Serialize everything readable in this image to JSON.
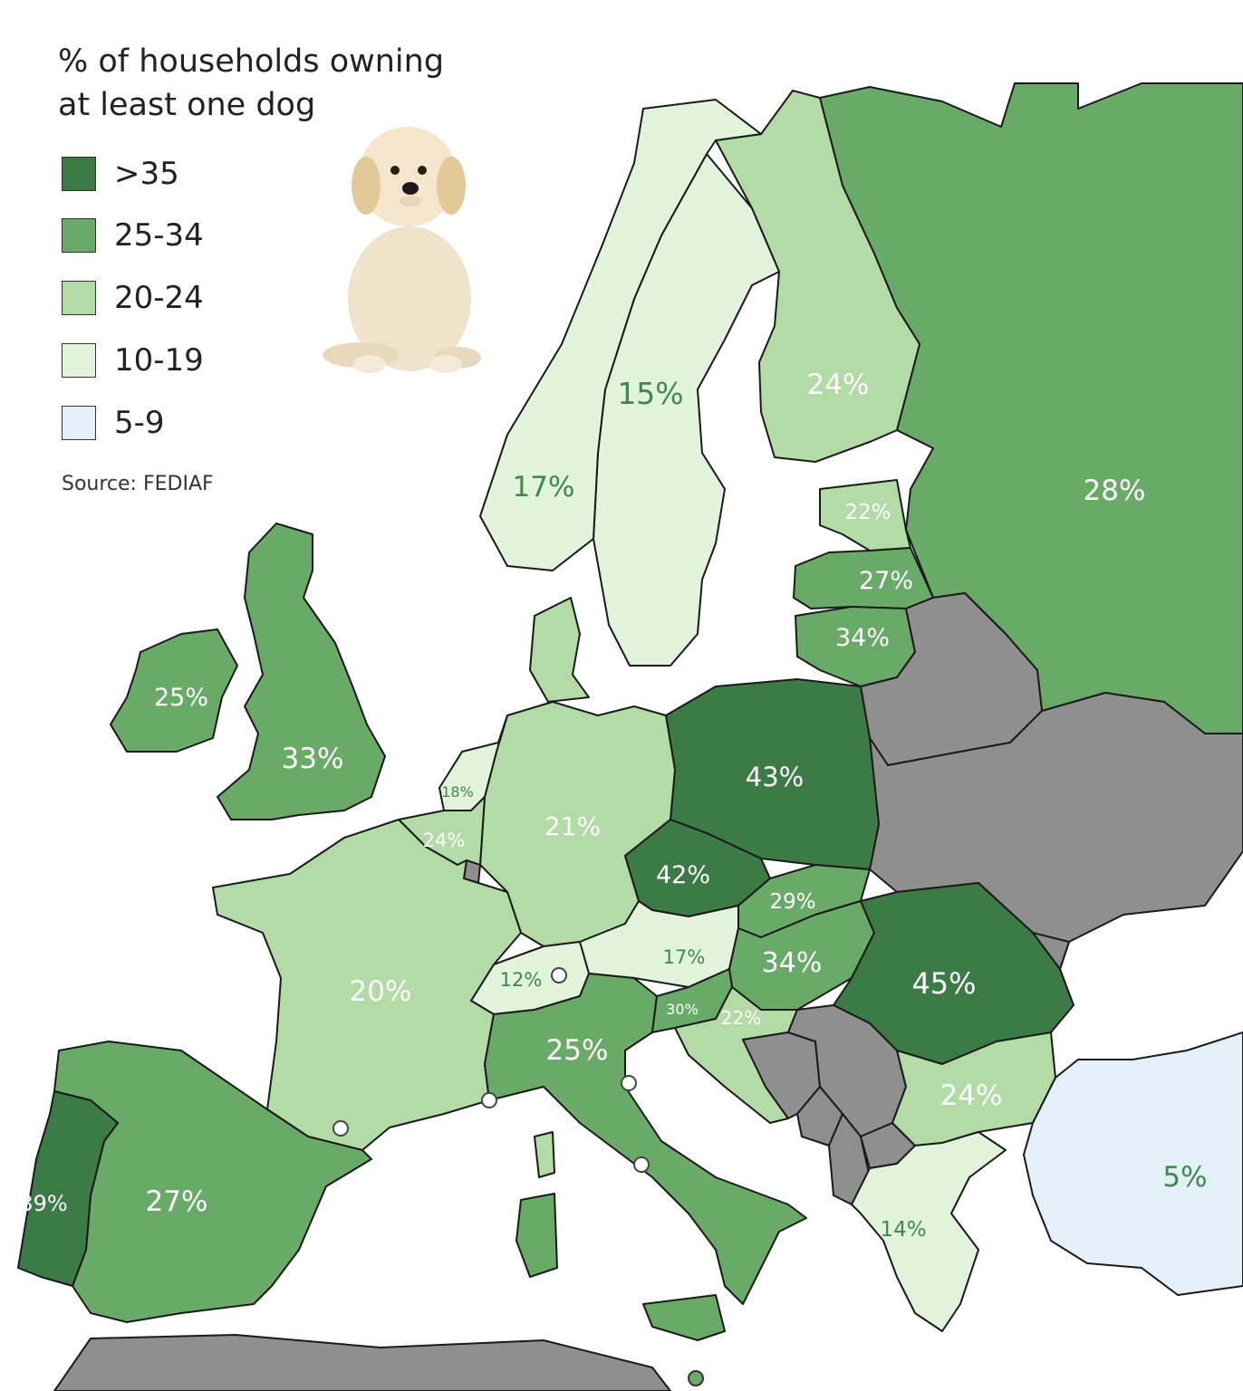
{
  "title": "% of households owning at least one dog",
  "source": "Source: FEDIAF",
  "legend": [
    {
      "label": ">35",
      "color": "#3d7b46"
    },
    {
      "label": "25-34",
      "color": "#6aaa69"
    },
    {
      "label": "20-24",
      "color": "#b2dba6"
    },
    {
      "label": "10-19",
      "color": "#e2f3dc"
    },
    {
      "label": "5-9",
      "color": "#e4f0f8"
    }
  ],
  "no_data_color": "#8f8f8f",
  "countries": [
    {
      "name": "Russia",
      "value": "28%",
      "pct": 28
    },
    {
      "name": "Finland",
      "value": "24%",
      "pct": 24
    },
    {
      "name": "Sweden",
      "value": "15%",
      "pct": 15
    },
    {
      "name": "Norway",
      "value": "17%",
      "pct": 17
    },
    {
      "name": "Estonia",
      "value": "22%",
      "pct": 22
    },
    {
      "name": "Latvia",
      "value": "27%",
      "pct": 27
    },
    {
      "name": "Lithuania",
      "value": "34%",
      "pct": 34
    },
    {
      "name": "Ireland",
      "value": "25%",
      "pct": 25
    },
    {
      "name": "United Kingdom",
      "value": "33%",
      "pct": 33
    },
    {
      "name": "Netherlands",
      "value": "18%",
      "pct": 18
    },
    {
      "name": "Belgium",
      "value": "24%",
      "pct": 24
    },
    {
      "name": "Germany",
      "value": "21%",
      "pct": 21
    },
    {
      "name": "Poland",
      "value": "43%",
      "pct": 43
    },
    {
      "name": "Czechia",
      "value": "42%",
      "pct": 42
    },
    {
      "name": "Slovakia",
      "value": "29%",
      "pct": 29
    },
    {
      "name": "Austria",
      "value": "17%",
      "pct": 17
    },
    {
      "name": "Hungary",
      "value": "34%",
      "pct": 34
    },
    {
      "name": "Romania",
      "value": "45%",
      "pct": 45
    },
    {
      "name": "Switzerland",
      "value": "12%",
      "pct": 12
    },
    {
      "name": "France",
      "value": "20%",
      "pct": 20
    },
    {
      "name": "Italy",
      "value": "25%",
      "pct": 25
    },
    {
      "name": "Slovenia",
      "value": "30%",
      "pct": 30
    },
    {
      "name": "Croatia",
      "value": "22%",
      "pct": 22
    },
    {
      "name": "Bulgaria",
      "value": "24%",
      "pct": 24
    },
    {
      "name": "Greece",
      "value": "14%",
      "pct": 14
    },
    {
      "name": "Turkey",
      "value": "5%",
      "pct": 5
    },
    {
      "name": "Portugal",
      "value": "39%",
      "pct": 39
    },
    {
      "name": "Spain",
      "value": "27%",
      "pct": 27
    },
    {
      "name": "Denmark",
      "value": "",
      "pct": 24
    }
  ]
}
